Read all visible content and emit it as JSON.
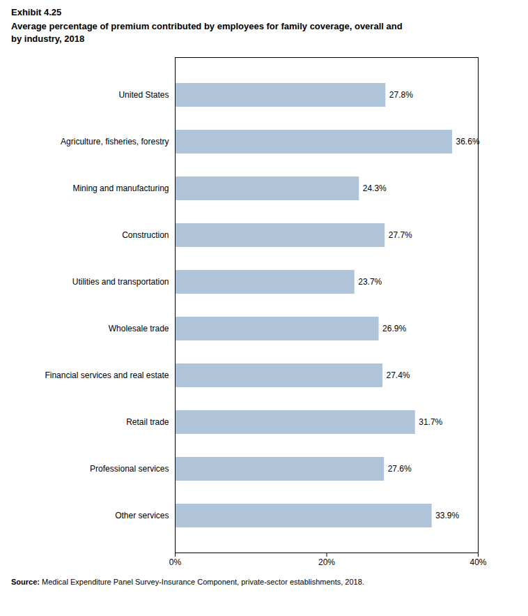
{
  "chart_data": {
    "type": "bar",
    "orientation": "horizontal",
    "title": "Exhibit 4.25",
    "subtitle": "Average percentage of premium contributed by employees for family coverage, overall and\nby industry, 2018",
    "categories": [
      "Other services",
      "Professional services",
      "Retail trade",
      "Financial services and real estate",
      "Wholesale trade",
      "Utilities and transportation",
      "Construction",
      "Mining and manufacturing",
      "Agriculture, fisheries, forestry",
      "United States"
    ],
    "values": [
      33.9,
      27.6,
      31.7,
      27.4,
      26.9,
      23.7,
      27.7,
      24.3,
      36.6,
      27.8
    ],
    "value_labels": [
      "33.9%",
      "27.6%",
      "31.7%",
      "27.4%",
      "26.9%",
      "23.7%",
      "27.7%",
      "24.3%",
      "36.6%",
      "27.8%"
    ],
    "data_labels": true,
    "color": "#afc4d8",
    "xlim": [
      0,
      40
    ],
    "xticks": [
      {
        "value": 0,
        "label": "0%"
      },
      {
        "value": 20,
        "label": "20%"
      },
      {
        "value": 40,
        "label": "40%"
      }
    ],
    "grid": false,
    "source_label": "Source:",
    "source": "Medical Expenditure Panel Survey-Insurance Component, private-sector establishments, 2018."
  }
}
